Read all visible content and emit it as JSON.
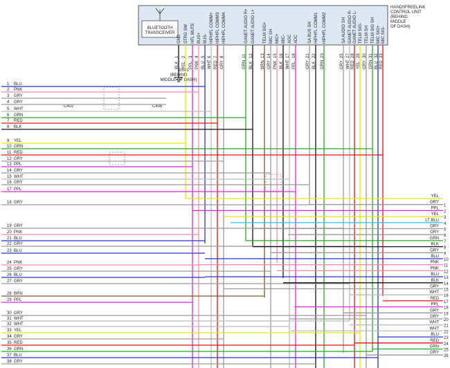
{
  "unit": {
    "title": [
      "HANDSFREELINK",
      "CONTROL UNIT",
      "(BEHIND",
      "MIDDLE",
      "OF DASH)"
    ],
    "transceiver": [
      "BLUETOOTH",
      "TRANSCEIVER"
    ],
    "pins": [
      {
        "name": "GND",
        "wire": "BLK",
        "number": "1",
        "color": "#111111"
      },
      {
        "name": "STRG SW",
        "wire": "YEL",
        "number": "2",
        "color": "#e6e600"
      },
      {
        "name": "HFL MUTE",
        "wire": "PPL",
        "number": "3",
        "color": "#dd22dd"
      },
      {
        "name": "BUS+",
        "wire": "PNK",
        "number": "4",
        "color": "#ff88aa"
      },
      {
        "name": "BUS-",
        "wire": "BLU",
        "number": "5",
        "color": "#2233cc"
      },
      {
        "name": "HIPHFL COMM+",
        "wire": "WHT",
        "number": "6",
        "color": "#bbbbbb"
      },
      {
        "name": "HIPHFL COMM3",
        "wire": "RED",
        "number": "7",
        "color": "#e01010"
      },
      {
        "name": "HIPHFL COMM4",
        "wire": "GRY",
        "number": "8",
        "color": "#999999"
      },
      {
        "name": "GANET AUDIO R+",
        "wire": "GRN",
        "number": "11",
        "color": "#22aa22"
      },
      {
        "name": "GANET AUDIO L+",
        "wire": "BLK",
        "number": "12",
        "color": "#111111"
      },
      {
        "name": "TELM SIG+",
        "wire": "BRN",
        "number": "13",
        "color": "#7a5a20"
      },
      {
        "name": "MIC SH",
        "wire": "GRY",
        "number": "14",
        "color": "#999999"
      },
      {
        "name": "MIC+",
        "wire": "PNK",
        "number": "15",
        "color": "#ff88aa"
      },
      {
        "name": "MIC-",
        "wire": "BLK",
        "number": "16",
        "color": "#111111"
      },
      {
        "name": "AGC",
        "wire": "WHT",
        "number": "17",
        "color": "#bbbbbb"
      },
      {
        "name": "ADC",
        "wire": "PPL",
        "number": "18",
        "color": "#dd22dd"
      },
      {
        "name": "SA BUS SH",
        "wire": "GRY",
        "number": "21",
        "color": "#999999"
      },
      {
        "name": "HIPHFL COMM1",
        "wire": "BLK",
        "number": "22",
        "color": "#111111"
      },
      {
        "name": "HIPHFL COMM2",
        "wire": "GRN",
        "number": "23",
        "color": "#22aa22"
      },
      {
        "name": "SA AUDIO SH",
        "wire": "GRY",
        "number": "25",
        "color": "#999999"
      },
      {
        "name": "GANET AUDIO R-",
        "wire": "WHT",
        "number": "27",
        "color": "#bbbbbb"
      },
      {
        "name": "GANET AUDIO L-",
        "wire": "RED",
        "number": "28",
        "color": "#e01010"
      },
      {
        "name": "TELM SIG-",
        "wire": "YEL",
        "number": "29",
        "color": "#e6e600"
      },
      {
        "name": "TELM SH",
        "wire": "GRY",
        "number": "30",
        "color": "#999999"
      },
      {
        "name": "TELM SIG SH",
        "wire": "GRN",
        "number": "31",
        "color": "#22aa22"
      },
      {
        "name": "MIC SIG+",
        "wire": "BLU",
        "number": "32",
        "color": "#2233cc"
      },
      {
        "name": "MIC SIG-",
        "wire": "RED",
        "number": "33",
        "color": "#e01010"
      }
    ]
  },
  "ground": [
    "G501",
    "(BEHIND",
    "MIDDLE OF DASH)"
  ],
  "connectors": [
    "C402",
    "C406"
  ],
  "left_wires": [
    {
      "number": "1",
      "wire": "BLU",
      "color": "#2233cc"
    },
    {
      "number": "2",
      "wire": "PNK",
      "color": "#ff88aa"
    },
    {
      "number": "3",
      "wire": "GRY",
      "color": "#999999"
    },
    {
      "number": "4",
      "wire": "GRY",
      "color": "#999999"
    },
    {
      "number": "5",
      "wire": "WHT",
      "color": "#bbbbbb"
    },
    {
      "number": "6",
      "wire": "GRN",
      "color": "#22aa22"
    },
    {
      "number": "7",
      "wire": "RED",
      "color": "#e01010"
    },
    {
      "number": "8",
      "wire": "BLK",
      "color": "#111111"
    },
    {
      "number": "9",
      "wire": "YEL",
      "color": "#e6e600"
    },
    {
      "number": "10",
      "wire": "GRN",
      "color": "#22aa22"
    },
    {
      "number": "11",
      "wire": "RED",
      "color": "#e01010"
    },
    {
      "number": "12",
      "wire": "GRY",
      "color": "#999999"
    },
    {
      "number": "13",
      "wire": "PPL",
      "color": "#dd22dd"
    },
    {
      "number": "14",
      "wire": "GRY",
      "color": "#999999"
    },
    {
      "number": "15",
      "wire": "WHT",
      "color": "#bbbbbb"
    },
    {
      "number": "16",
      "wire": "GRY",
      "color": "#999999"
    },
    {
      "number": "17",
      "wire": "PPL",
      "color": "#dd22dd"
    },
    {
      "number": "18",
      "wire": "GRY",
      "color": "#999999"
    },
    {
      "number": "19",
      "wire": "GRY",
      "color": "#999999"
    },
    {
      "number": "20",
      "wire": "PNK",
      "color": "#ff88aa"
    },
    {
      "number": "21",
      "wire": "BLU",
      "color": "#2233cc"
    },
    {
      "number": "22",
      "wire": "GRY",
      "color": "#999999"
    },
    {
      "number": "23",
      "wire": "BLU",
      "color": "#2233cc"
    },
    {
      "number": "24",
      "wire": "PNK",
      "color": "#ff88aa"
    },
    {
      "number": "25",
      "wire": "GRY",
      "color": "#999999"
    },
    {
      "number": "26",
      "wire": "BLU",
      "color": "#2233cc"
    },
    {
      "number": "27",
      "wire": "GRY",
      "color": "#999999"
    },
    {
      "number": "28",
      "wire": "BRN",
      "color": "#7a5a20"
    },
    {
      "number": "29",
      "wire": "PPL",
      "color": "#dd22dd"
    },
    {
      "number": "30",
      "wire": "GRY",
      "color": "#999999"
    },
    {
      "number": "31",
      "wire": "WHT",
      "color": "#bbbbbb"
    },
    {
      "number": "32",
      "wire": "WHT",
      "color": "#bbbbbb"
    },
    {
      "number": "33",
      "wire": "YEL",
      "color": "#e6e600"
    },
    {
      "number": "34",
      "wire": "GRY",
      "color": "#999999"
    },
    {
      "number": "35",
      "wire": "RED",
      "color": "#e01010"
    },
    {
      "number": "36",
      "wire": "GRN",
      "color": "#22aa22"
    },
    {
      "number": "37",
      "wire": "BLU",
      "color": "#2233cc"
    },
    {
      "number": "38",
      "wire": "GRY",
      "color": "#999999"
    }
  ],
  "right_wires": [
    {
      "wire": "YEL",
      "color": "#e6e600"
    },
    {
      "number": "1",
      "wire": "GRY",
      "color": "#999999"
    },
    {
      "number": "2",
      "wire": "PPL",
      "color": "#dd22dd"
    },
    {
      "number": "3",
      "wire": "YEL",
      "color": "#e6e600"
    },
    {
      "number": "4",
      "wire": "LT BLU",
      "color": "#33ccee"
    },
    {
      "number": "5",
      "wire": "GRY",
      "color": "#999999"
    },
    {
      "number": "6",
      "wire": "GRY",
      "color": "#999999"
    },
    {
      "number": "7",
      "wire": "GRN",
      "color": "#22aa22"
    },
    {
      "number": "8",
      "wire": "BLK",
      "color": "#111111"
    },
    {
      "number": "9",
      "wire": "GRY",
      "color": "#999999"
    },
    {
      "number": "10",
      "wire": "BLU",
      "color": "#2233cc"
    },
    {
      "number": "11",
      "wire": "PNK",
      "color": "#ff88aa"
    },
    {
      "number": "12",
      "wire": "PNK",
      "color": "#ff88aa"
    },
    {
      "number": "13",
      "wire": "BLU",
      "color": "#2233cc"
    },
    {
      "number": "14",
      "wire": "BLK",
      "color": "#111111"
    },
    {
      "number": "15",
      "wire": "GRY",
      "color": "#999999"
    },
    {
      "number": "16",
      "wire": "WHT",
      "color": "#bbbbbb"
    },
    {
      "number": "17",
      "wire": "RED",
      "color": "#e01010"
    },
    {
      "number": "18",
      "wire": "PPL",
      "color": "#dd22dd"
    },
    {
      "number": "19",
      "wire": "GRY",
      "color": "#999999"
    },
    {
      "number": "20",
      "wire": "GRY",
      "color": "#999999"
    },
    {
      "number": "21",
      "wire": "WHT",
      "color": "#bbbbbb"
    },
    {
      "number": "22",
      "wire": "WHT",
      "color": "#bbbbbb"
    },
    {
      "number": "23",
      "wire": "BLU",
      "color": "#2233cc"
    },
    {
      "number": "24",
      "wire": "RED",
      "color": "#e01010"
    },
    {
      "number": "25",
      "wire": "GRN",
      "color": "#22aa22"
    },
    {
      "number": "26",
      "wire": "GRY",
      "color": "#999999"
    }
  ]
}
